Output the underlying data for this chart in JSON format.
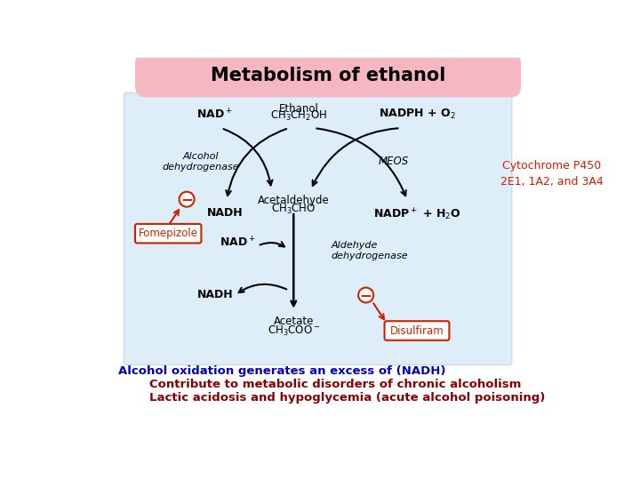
{
  "title": "Metabolism of ethanol",
  "title_bg_color": "#f5b8c0",
  "diagram_bg_color": "#ddeef8",
  "background_color": "#ffffff",
  "cytochrome_text": "Cytochrome P450\n2E1, 1A2, and 3A4",
  "cytochrome_color": "#cc2200",
  "bottom_line1": "Alcohol oxidation generates an excess of (NADH)",
  "bottom_line1_color": "#0000bb",
  "bottom_line2": "Contribute to metabolic disorders of chronic alcoholism",
  "bottom_line2_color": "#880000",
  "bottom_line3": "Lactic acidosis and hypoglycemia (acute alcohol poisoning)",
  "bottom_line3_color": "#880000",
  "minus_sign": "−",
  "red_color": "#cc2200"
}
